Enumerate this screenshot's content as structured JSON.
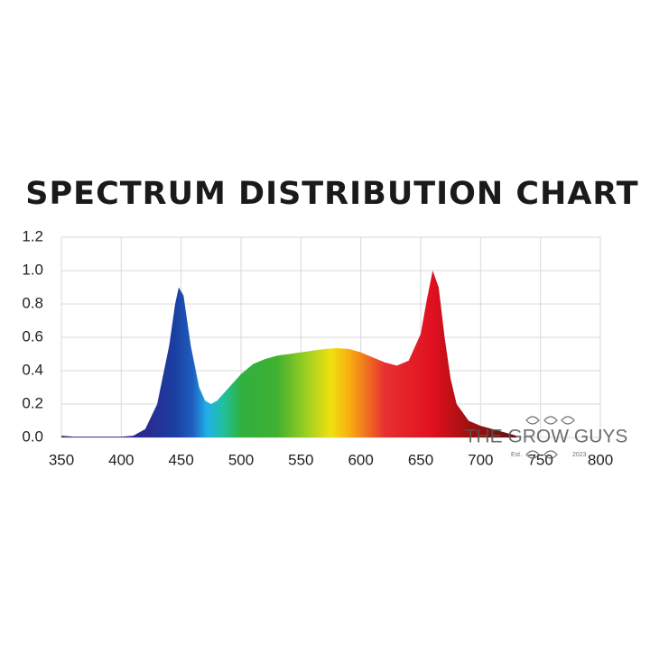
{
  "chart_data": {
    "type": "area",
    "title": "SPECTRUM DISTRIBUTION CHART",
    "x": [
      350,
      360,
      380,
      400,
      410,
      420,
      430,
      440,
      445,
      448,
      452,
      458,
      465,
      470,
      475,
      480,
      490,
      500,
      510,
      520,
      530,
      540,
      550,
      560,
      570,
      580,
      590,
      600,
      610,
      620,
      630,
      640,
      650,
      655,
      660,
      665,
      670,
      675,
      680,
      690,
      700,
      710,
      720,
      730
    ],
    "values": [
      0.01,
      0.005,
      0.005,
      0.005,
      0.01,
      0.05,
      0.2,
      0.55,
      0.8,
      0.9,
      0.85,
      0.55,
      0.3,
      0.22,
      0.2,
      0.22,
      0.3,
      0.38,
      0.44,
      0.47,
      0.49,
      0.5,
      0.51,
      0.52,
      0.53,
      0.535,
      0.53,
      0.51,
      0.48,
      0.45,
      0.43,
      0.46,
      0.62,
      0.82,
      1.0,
      0.9,
      0.6,
      0.35,
      0.2,
      0.1,
      0.07,
      0.05,
      0.03,
      0.01
    ],
    "xlim": [
      350,
      800
    ],
    "xticks": [
      350,
      400,
      450,
      500,
      550,
      600,
      650,
      700,
      750,
      800
    ],
    "ylim": [
      0,
      1.2
    ],
    "yticks": [
      {
        "value": 0,
        "label": "0.0"
      },
      0.2,
      0.4,
      0.6,
      0.8,
      {
        "value": 1,
        "label": "1.0"
      },
      1.2
    ],
    "grid": true,
    "color": "spectrum"
  },
  "watermark": {
    "text": "THE GROW GUYS",
    "est": "Est.",
    "year": "2023"
  }
}
